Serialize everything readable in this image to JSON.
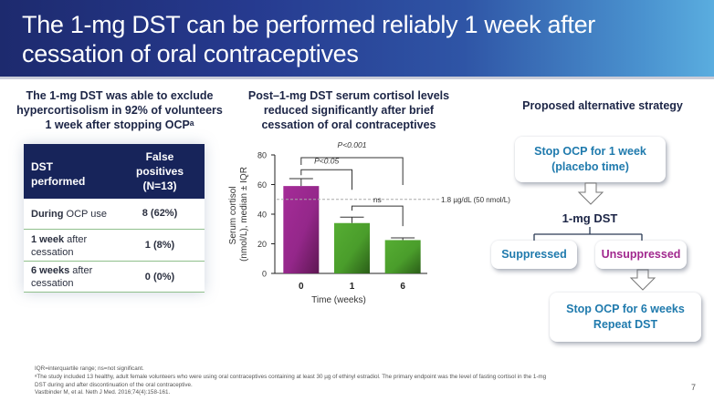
{
  "header": {
    "title": "The 1-mg DST can be performed reliably 1 week after cessation of oral contraceptives"
  },
  "left_panel": {
    "heading_lines": [
      "The 1-mg DST was able to exclude",
      "hypercortisolism in 92% of volunteers",
      "1 week after stopping OCPᵃ"
    ],
    "table": {
      "headers": [
        "DST performed",
        "False positives (N=13)"
      ],
      "header_col2_lines": [
        "False",
        "positives",
        "(N=13)"
      ],
      "header_col1_lines": [
        "DST",
        "performed"
      ],
      "rows": [
        {
          "bold": "During",
          "rest": " OCP use",
          "value": "8 (62%)"
        },
        {
          "bold": "1 week",
          "rest": " after cessation",
          "value": "1 (8%)"
        },
        {
          "bold": "6 weeks",
          "rest": " after cessation",
          "value": "0 (0%)"
        }
      ]
    }
  },
  "middle_panel": {
    "heading_lines": [
      "Post–1-mg DST serum cortisol levels",
      "reduced significantly after brief",
      "cessation of oral contraceptives"
    ]
  },
  "chart_data": {
    "type": "bar",
    "title": "Post–1-mg DST serum cortisol levels reduced significantly after brief cessation of oral contraceptives",
    "categories": [
      "0",
      "1",
      "6"
    ],
    "values": [
      59,
      34,
      22.5
    ],
    "error_upper": [
      64,
      38,
      24
    ],
    "bar_colors": [
      "#9b2a8f",
      "#4fa52e",
      "#4fa52e"
    ],
    "xlabel": "Time (weeks)",
    "ylabel_lines": [
      "Serum cortisol",
      "(nmol/L), median ± IQR"
    ],
    "ylim": [
      0,
      80
    ],
    "yticks": [
      0,
      20,
      40,
      60,
      80
    ],
    "grid": false,
    "reference_line": {
      "value": 50,
      "label": "1.8 µg/dL (50 nmol/L)"
    },
    "annotations": [
      {
        "from": "0",
        "to": "6",
        "label": "P<0.001"
      },
      {
        "from": "0",
        "to": "1",
        "label": "P<0.05"
      },
      {
        "from": "1",
        "to": "6",
        "label": "ns"
      }
    ]
  },
  "right_panel": {
    "heading": "Proposed alternative strategy",
    "step1_lines": [
      "Stop OCP for 1 week",
      "(placebo time)"
    ],
    "test_label": "1-mg DST",
    "branch_left": "Suppressed",
    "branch_right": "Unsuppressed",
    "step2_lines": [
      "Stop OCP for 6 weeks",
      "Repeat DST"
    ],
    "colors": {
      "blue": "#1f7aad",
      "magenta": "#a1288e"
    }
  },
  "footnotes": [
    "IQR=interquartile range; ns=not significant.",
    "ᵃThe study included 13 healthy, adult female volunteers who were using oral contraceptives containing at least 30 µg of ethinyl estradiol. The primary endpoint was the level of fasting cortisol in the 1-mg",
    "DST during and after discontinuation of the oral contraceptive.",
    "Vastbinder M, et al. Neth J Med. 2016;74(4):158-161."
  ],
  "page_number": "7"
}
